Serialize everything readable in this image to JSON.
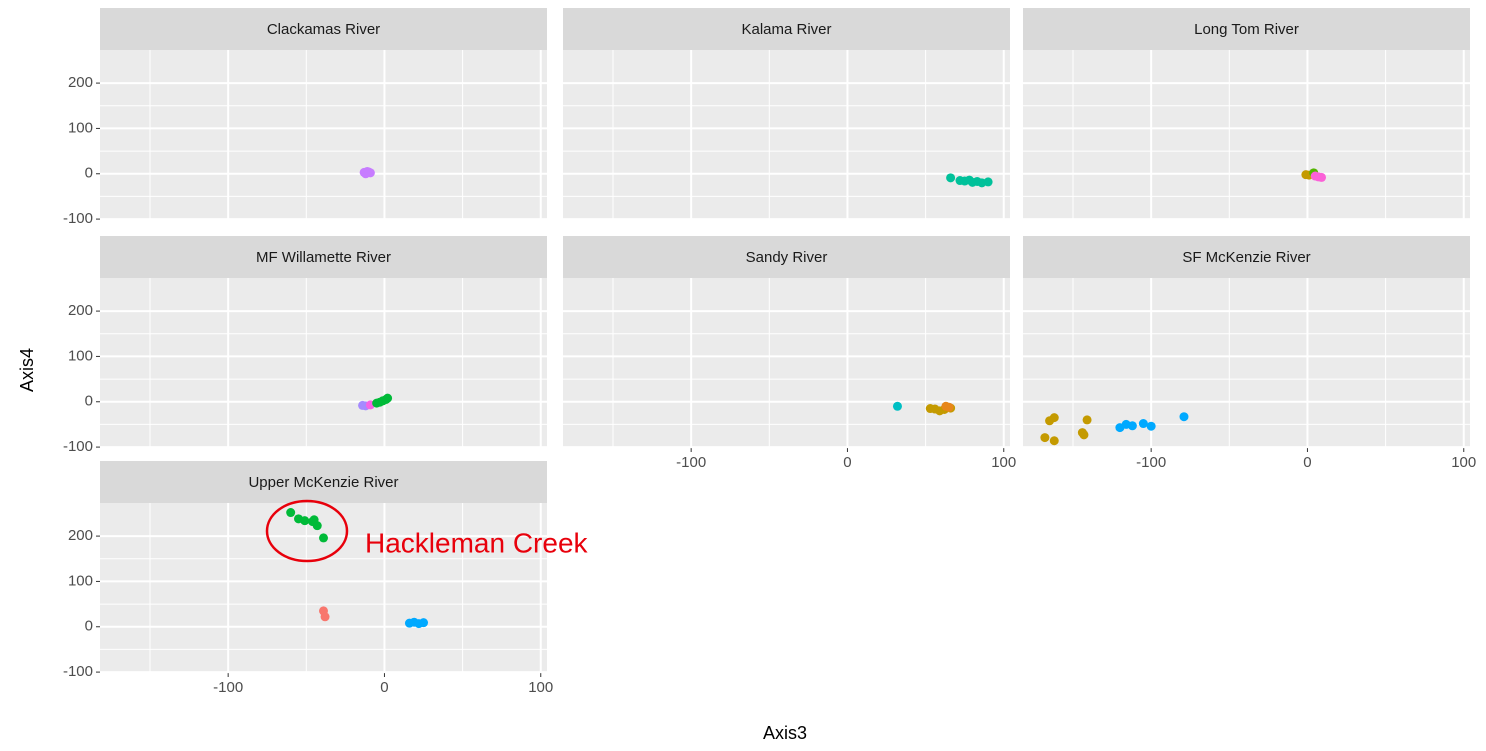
{
  "chart_data": {
    "type": "scatter",
    "x_label": "Axis3",
    "y_label": "Axis4",
    "xlim": [
      -182,
      104
    ],
    "xticks": [
      -100,
      0,
      100
    ],
    "ylim": [
      -102,
      273
    ],
    "yticks": [
      -100,
      0,
      100,
      200
    ],
    "grid": true,
    "annotation": "Hackleman Creek",
    "facets": [
      {
        "title": "Clackamas River",
        "series": [
          {
            "color": "#c77cff",
            "x": [
              -13,
              -11,
              -9,
              -12,
              -10
            ],
            "values": [
              3,
              5,
              2,
              0,
              4
            ]
          }
        ]
      },
      {
        "title": "Kalama River",
        "series": [
          {
            "color": "#00c19a",
            "x": [
              66,
              72,
              75,
              78,
              80,
              83,
              86,
              90
            ],
            "values": [
              -9,
              -15,
              -16,
              -14,
              -19,
              -17,
              -20,
              -18
            ]
          }
        ]
      },
      {
        "title": "Long Tom River",
        "series": [
          {
            "color": "#c49a00",
            "x": [
              -1,
              1
            ],
            "values": [
              -2,
              -3
            ]
          },
          {
            "color": "#53b400",
            "x": [
              4
            ],
            "values": [
              2
            ]
          },
          {
            "color": "#fb61d7",
            "x": [
              5,
              7,
              9
            ],
            "values": [
              -5,
              -7,
              -8
            ]
          }
        ]
      },
      {
        "title": "MF Willamette River",
        "series": [
          {
            "color": "#a58aff",
            "x": [
              -14,
              -12
            ],
            "values": [
              -8,
              -9
            ]
          },
          {
            "color": "#f564e3",
            "x": [
              -9
            ],
            "values": [
              -7
            ]
          },
          {
            "color": "#00ba38",
            "x": [
              -5,
              -3,
              -1,
              1,
              2
            ],
            "values": [
              -3,
              -1,
              2,
              5,
              8
            ]
          }
        ]
      },
      {
        "title": "Sandy River",
        "series": [
          {
            "color": "#00bfc4",
            "x": [
              32
            ],
            "values": [
              -10
            ]
          },
          {
            "color": "#c49a00",
            "x": [
              53,
              56,
              59,
              62,
              66
            ],
            "values": [
              -15,
              -16,
              -20,
              -17,
              -14
            ]
          },
          {
            "color": "#e7861b",
            "x": [
              63,
              65
            ],
            "values": [
              -10,
              -12
            ]
          }
        ]
      },
      {
        "title": "SF McKenzie River",
        "series": [
          {
            "color": "#c49a00",
            "x": [
              -168,
              -165,
              -162,
              -162,
              -144,
              -143,
              -141
            ],
            "values": [
              -79,
              -42,
              -35,
              -86,
              -68,
              -73,
              -40
            ]
          },
          {
            "color": "#00a9ff",
            "x": [
              -120,
              -116,
              -112,
              -105,
              -100,
              -79
            ],
            "values": [
              -57,
              -50,
              -53,
              -48,
              -54,
              -33
            ]
          }
        ]
      },
      {
        "title": "Upper McKenzie River",
        "series": [
          {
            "color": "#00ba38",
            "x": [
              -60,
              -55,
              -51,
              -46,
              -45,
              -43,
              -39
            ],
            "values": [
              252,
              238,
              234,
              232,
              236,
              223,
              196
            ]
          },
          {
            "color": "#f8766d",
            "x": [
              -39,
              -38
            ],
            "values": [
              35,
              22
            ]
          },
          {
            "color": "#00a9ff",
            "x": [
              16,
              19,
              22,
              25
            ],
            "values": [
              8,
              10,
              7,
              9
            ]
          }
        ]
      }
    ]
  }
}
